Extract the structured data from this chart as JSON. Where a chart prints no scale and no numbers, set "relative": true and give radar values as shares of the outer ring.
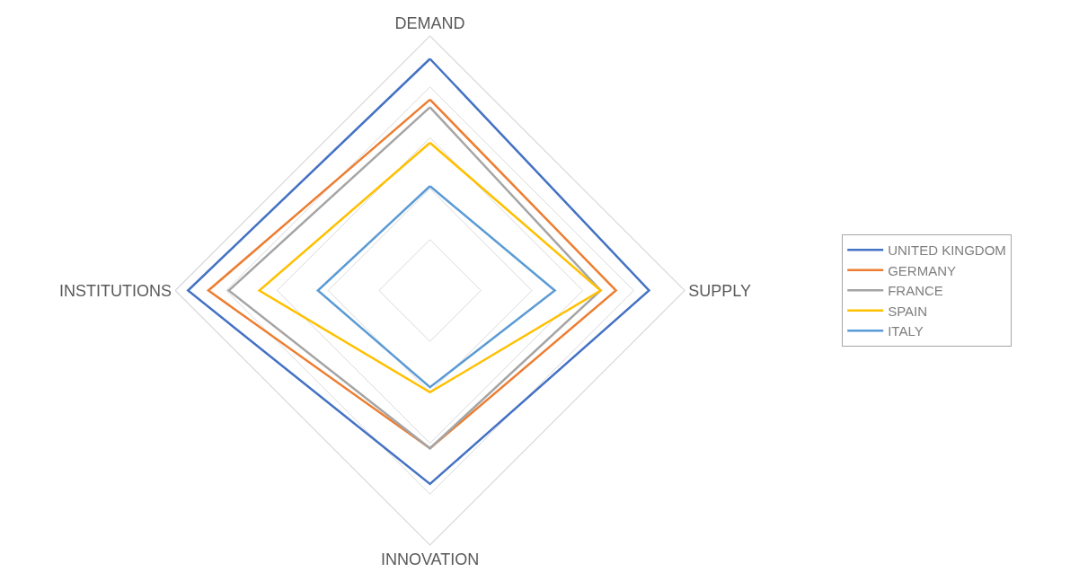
{
  "chart_data": {
    "type": "radar",
    "relative": true,
    "categories": [
      "DEMAND",
      "SUPPLY",
      "INNOVATION",
      "INSTITUTIONS"
    ],
    "series": [
      {
        "name": "UNITED KINGDOM",
        "color": "#4472c4",
        "values": [
          0.91,
          0.86,
          0.76,
          0.95
        ]
      },
      {
        "name": "GERMANY",
        "color": "#ed7d31",
        "values": [
          0.75,
          0.73,
          0.62,
          0.87
        ]
      },
      {
        "name": "FRANCE",
        "color": "#a5a5a5",
        "values": [
          0.72,
          0.67,
          0.62,
          0.79
        ]
      },
      {
        "name": "SPAIN",
        "color": "#ffc000",
        "values": [
          0.58,
          0.67,
          0.4,
          0.67
        ]
      },
      {
        "name": "ITALY",
        "color": "#5b9bd5",
        "values": [
          0.41,
          0.49,
          0.38,
          0.44
        ]
      }
    ],
    "grid": true,
    "legend": "right",
    "marker": "none",
    "line_style": "solid"
  }
}
